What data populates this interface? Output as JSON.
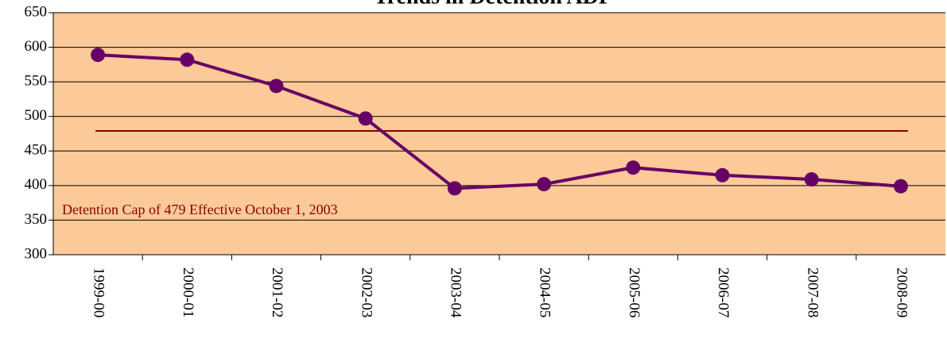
{
  "chart_data": {
    "type": "line",
    "title": "Trends in Detention ADP",
    "categories": [
      "1999-00",
      "2000-01",
      "2001-02",
      "2002-03",
      "2003-04",
      "2004-05",
      "2005-06",
      "2006-07",
      "2007-08",
      "2008-09"
    ],
    "series": [
      {
        "color": "#660066",
        "values": [
          589,
          582,
          544,
          497,
          396,
          402,
          426,
          415,
          409,
          399
        ]
      }
    ],
    "reference_line": {
      "value": 479,
      "color": "#8b0000"
    },
    "annotation": "Detention Cap of 479 Effective October 1, 2003",
    "ylim": [
      300,
      650
    ],
    "yticks": [
      300,
      350,
      400,
      450,
      500,
      550,
      600,
      650
    ],
    "grid": true,
    "background": "#fcc998"
  }
}
